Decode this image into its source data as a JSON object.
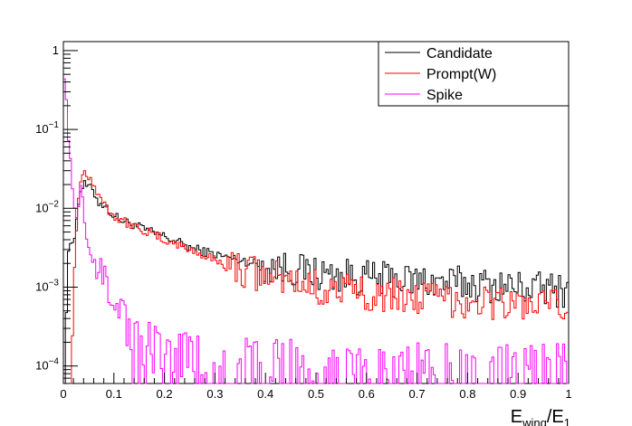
{
  "chart_data": {
    "type": "line",
    "title": "",
    "xlabel": "E_wing/E_1",
    "ylabel": "",
    "xlim": [
      0,
      1
    ],
    "ylim": [
      6e-05,
      1.3
    ],
    "yscale": "log",
    "grid": false,
    "legend_position": "top-right",
    "x_ticks": [
      "0",
      "0.1",
      "0.2",
      "0.3",
      "0.4",
      "0.5",
      "0.6",
      "0.7",
      "0.8",
      "0.9",
      "1"
    ],
    "y_ticks": [
      {
        "mantissa": "1",
        "exp": ""
      },
      {
        "mantissa": "10",
        "exp": "−1"
      },
      {
        "mantissa": "10",
        "exp": "−2"
      },
      {
        "mantissa": "10",
        "exp": "−3"
      },
      {
        "mantissa": "10",
        "exp": "−4"
      }
    ],
    "series": [
      {
        "name": "Candidate",
        "color": "#000000",
        "points": [
          [
            0.0,
            0.0001
          ],
          [
            0.005,
            0.00035
          ],
          [
            0.01,
            0.0025
          ],
          [
            0.015,
            0.004
          ],
          [
            0.02,
            0.004
          ],
          [
            0.025,
            0.006
          ],
          [
            0.03,
            0.012
          ],
          [
            0.035,
            0.018
          ],
          [
            0.04,
            0.02
          ],
          [
            0.05,
            0.019
          ],
          [
            0.06,
            0.016
          ],
          [
            0.07,
            0.012
          ],
          [
            0.08,
            0.011
          ],
          [
            0.09,
            0.0095
          ],
          [
            0.1,
            0.008
          ],
          [
            0.12,
            0.0068
          ],
          [
            0.14,
            0.0062
          ],
          [
            0.16,
            0.0054
          ],
          [
            0.18,
            0.0048
          ],
          [
            0.2,
            0.0044
          ],
          [
            0.25,
            0.0032
          ],
          [
            0.3,
            0.0026
          ],
          [
            0.35,
            0.0022
          ],
          [
            0.4,
            0.0019
          ],
          [
            0.45,
            0.0017
          ],
          [
            0.5,
            0.0015
          ],
          [
            0.55,
            0.0014
          ],
          [
            0.6,
            0.0013
          ],
          [
            0.65,
            0.00125
          ],
          [
            0.7,
            0.0012
          ],
          [
            0.75,
            0.00115
          ],
          [
            0.8,
            0.0011
          ],
          [
            0.85,
            0.00105
          ],
          [
            0.9,
            0.001
          ],
          [
            0.95,
            0.00095
          ],
          [
            1.0,
            0.0009
          ]
        ]
      },
      {
        "name": "Prompt(W)",
        "color": "#ff0000",
        "points": [
          [
            0.015,
            0.0001
          ],
          [
            0.02,
            0.001
          ],
          [
            0.025,
            0.004
          ],
          [
            0.03,
            0.014
          ],
          [
            0.035,
            0.025
          ],
          [
            0.04,
            0.03
          ],
          [
            0.05,
            0.026
          ],
          [
            0.06,
            0.02
          ],
          [
            0.07,
            0.015
          ],
          [
            0.08,
            0.012
          ],
          [
            0.09,
            0.0095
          ],
          [
            0.1,
            0.008
          ],
          [
            0.12,
            0.0068
          ],
          [
            0.14,
            0.006
          ],
          [
            0.16,
            0.0052
          ],
          [
            0.18,
            0.0045
          ],
          [
            0.2,
            0.004
          ],
          [
            0.25,
            0.003
          ],
          [
            0.3,
            0.0022
          ],
          [
            0.35,
            0.0017
          ],
          [
            0.4,
            0.0014
          ],
          [
            0.45,
            0.0012
          ],
          [
            0.5,
            0.001
          ],
          [
            0.55,
            0.0009
          ],
          [
            0.6,
            0.00085
          ],
          [
            0.65,
            0.0008
          ],
          [
            0.7,
            0.00075
          ],
          [
            0.75,
            0.0007
          ],
          [
            0.8,
            0.00068
          ],
          [
            0.85,
            0.00065
          ],
          [
            0.9,
            0.0006
          ],
          [
            0.95,
            0.00058
          ],
          [
            1.0,
            0.00055
          ]
        ]
      },
      {
        "name": "Spike",
        "color": "#ff00ff",
        "points": [
          [
            0.0,
            0.7
          ],
          [
            0.005,
            0.3
          ],
          [
            0.01,
            0.07
          ],
          [
            0.015,
            0.035
          ],
          [
            0.02,
            0.012
          ],
          [
            0.025,
            0.008
          ],
          [
            0.03,
            0.01
          ],
          [
            0.035,
            0.02
          ],
          [
            0.04,
            0.009
          ],
          [
            0.045,
            0.005
          ],
          [
            0.05,
            0.003
          ],
          [
            0.06,
            0.0022
          ],
          [
            0.07,
            0.0016
          ],
          [
            0.08,
            0.0012
          ],
          [
            0.09,
            0.001
          ],
          [
            0.1,
            0.00085
          ],
          [
            0.11,
            0.0006
          ],
          [
            0.12,
            0.0004
          ],
          [
            0.13,
            0.00025
          ],
          [
            0.14,
            0.0002
          ],
          [
            0.15,
            0.00015
          ],
          [
            0.2,
            0.0001
          ],
          [
            0.3,
            9e-05
          ],
          [
            0.4,
            8e-05
          ],
          [
            0.5,
            8e-05
          ],
          [
            0.6,
            7e-05
          ],
          [
            0.7,
            7e-05
          ],
          [
            0.8,
            7e-05
          ],
          [
            0.9,
            7e-05
          ],
          [
            1.0,
            7e-05
          ]
        ]
      }
    ]
  }
}
